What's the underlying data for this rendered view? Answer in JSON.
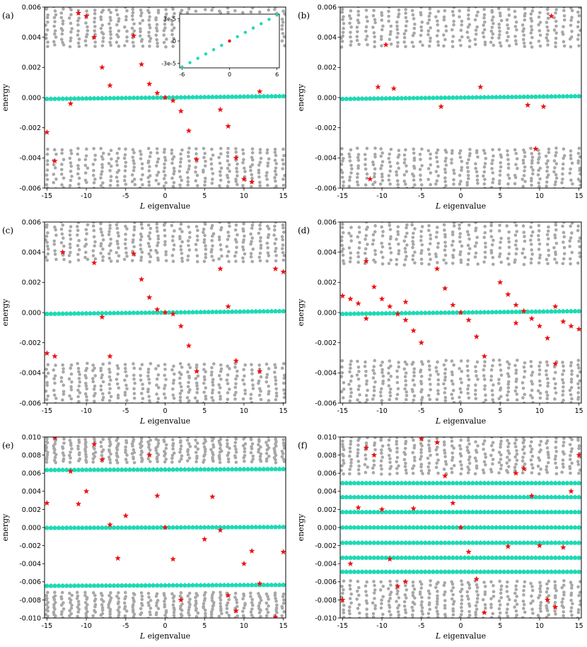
{
  "figure": {
    "legend_note": "red stars and cyan pentagons are highlighted states; grey dots are other states"
  },
  "style": {
    "grey": "#a8a8a8",
    "cyan": "#1ed9b4",
    "red": "#ee1111",
    "axis": "#000000"
  },
  "chart_data": [
    {
      "panel": "(a)",
      "type": "scatter",
      "xlabel": "L eigenvalue",
      "ylabel": "energy",
      "xlim": [
        -15.3,
        15.3
      ],
      "ylim": [
        -0.006,
        0.006
      ],
      "xticks": [
        -15,
        -10,
        -5,
        0,
        5,
        10,
        15
      ],
      "yticks": [
        -0.006,
        -0.004,
        -0.002,
        0.0,
        0.002,
        0.004,
        0.006
      ],
      "ytick_labels": [
        "-0.006",
        "-0.004",
        "-0.002",
        "0.000",
        "0.002",
        "0.004",
        "0.006"
      ],
      "grey_bands": [
        [
          0.0033,
          0.0062
        ],
        [
          -0.0062,
          -0.0033
        ]
      ],
      "cyan_rows": [
        {
          "y0": -9e-05,
          "y1": 9e-05
        }
      ],
      "red": [
        [
          -15,
          -0.0023
        ],
        [
          -14,
          -0.0042
        ],
        [
          -12,
          -0.0004
        ],
        [
          -11,
          0.0056
        ],
        [
          -10,
          0.0054
        ],
        [
          -9,
          0.004
        ],
        [
          -8,
          0.002
        ],
        [
          -7,
          0.0008
        ],
        [
          -4,
          0.0041
        ],
        [
          -3,
          0.0022
        ],
        [
          -2,
          0.0009
        ],
        [
          -1,
          0.0003
        ],
        [
          0,
          0.0
        ],
        [
          1,
          -0.0002
        ],
        [
          2,
          -0.0009
        ],
        [
          3,
          -0.0022
        ],
        [
          4,
          -0.0041
        ],
        [
          7,
          -0.0008
        ],
        [
          8,
          -0.0019
        ],
        [
          9,
          -0.004
        ],
        [
          10,
          -0.0054
        ],
        [
          11,
          -0.0056
        ],
        [
          12,
          0.0004
        ]
      ],
      "inset": {
        "xlim": [
          -6.3,
          6.3
        ],
        "ylim": [
          -3.6e-05,
          3.6e-05
        ],
        "xticks": [
          -6,
          0,
          6
        ],
        "yticks": [
          -3e-05,
          0.0,
          3e-05
        ],
        "ytick_labels": [
          "-3e-5",
          "0",
          "3e-5"
        ],
        "cyan_slope_per_L": 5.8e-06,
        "red": [
          [
            0,
            0.0
          ]
        ]
      }
    },
    {
      "panel": "(b)",
      "type": "scatter",
      "xlabel": "L eigenvalue",
      "ylabel": "energy",
      "xlim": [
        -15.3,
        15.3
      ],
      "ylim": [
        -0.006,
        0.006
      ],
      "xticks": [
        -15,
        -10,
        -5,
        0,
        5,
        10,
        15
      ],
      "yticks": [
        -0.006,
        -0.004,
        -0.002,
        0.0,
        0.002,
        0.004,
        0.006
      ],
      "ytick_labels": [
        "-0.006",
        "-0.004",
        "-0.002",
        "0.000",
        "0.002",
        "0.004",
        "0.006"
      ],
      "grey_bands": [
        [
          0.0033,
          0.0062
        ],
        [
          -0.0062,
          -0.0033
        ]
      ],
      "cyan_rows": [
        {
          "y0": -9e-05,
          "y1": 9e-05
        }
      ],
      "red": [
        [
          -11.5,
          -0.0054
        ],
        [
          -10.5,
          0.0007
        ],
        [
          -9.5,
          0.0035
        ],
        [
          -8.5,
          0.0006
        ],
        [
          -2.5,
          -0.0006
        ],
        [
          2.5,
          0.0007
        ],
        [
          8.5,
          -0.0005
        ],
        [
          9.5,
          -0.0034
        ],
        [
          10.5,
          -0.0006
        ],
        [
          11.5,
          0.0054
        ]
      ]
    },
    {
      "panel": "(c)",
      "type": "scatter",
      "xlabel": "L eigenvalue",
      "ylabel": "energy",
      "xlim": [
        -15.3,
        15.3
      ],
      "ylim": [
        -0.006,
        0.006
      ],
      "xticks": [
        -15,
        -10,
        -5,
        0,
        5,
        10,
        15
      ],
      "yticks": [
        -0.006,
        -0.004,
        -0.002,
        0.0,
        0.002,
        0.004,
        0.006
      ],
      "ytick_labels": [
        "-0.006",
        "-0.004",
        "-0.002",
        "0.000",
        "0.002",
        "0.004",
        "0.006"
      ],
      "grey_bands": [
        [
          0.0033,
          0.0062
        ],
        [
          -0.0062,
          -0.0033
        ]
      ],
      "cyan_rows": [
        {
          "y0": -9e-05,
          "y1": 9e-05
        }
      ],
      "red": [
        [
          -15,
          -0.0027
        ],
        [
          -14,
          -0.0029
        ],
        [
          -13,
          0.004
        ],
        [
          -9,
          0.0033
        ],
        [
          -8,
          -0.0003
        ],
        [
          -7,
          -0.0029
        ],
        [
          -4,
          0.0039
        ],
        [
          -3,
          0.0022
        ],
        [
          -2,
          0.001
        ],
        [
          -1,
          0.0002
        ],
        [
          0,
          0.0
        ],
        [
          1,
          -0.0001
        ],
        [
          2,
          -0.0009
        ],
        [
          3,
          -0.0022
        ],
        [
          4,
          -0.0039
        ],
        [
          7,
          0.0029
        ],
        [
          8,
          0.0004
        ],
        [
          9,
          -0.0032
        ],
        [
          12,
          -0.0039
        ],
        [
          14,
          0.0029
        ],
        [
          15,
          0.0027
        ]
      ]
    },
    {
      "panel": "(d)",
      "type": "scatter",
      "xlabel": "L eigenvalue",
      "ylabel": "energy",
      "xlim": [
        -15.3,
        15.3
      ],
      "ylim": [
        -0.006,
        0.006
      ],
      "xticks": [
        -15,
        -10,
        -5,
        0,
        5,
        10,
        15
      ],
      "yticks": [
        -0.006,
        -0.004,
        -0.002,
        0.0,
        0.002,
        0.004,
        0.006
      ],
      "ytick_labels": [
        "-0.006",
        "-0.004",
        "-0.002",
        "0.000",
        "0.002",
        "0.004",
        "0.006"
      ],
      "grey_bands": [
        [
          0.0031,
          0.0062
        ],
        [
          -0.0062,
          -0.0031
        ]
      ],
      "cyan_rows": [
        {
          "y0": -9e-05,
          "y1": 9e-05
        }
      ],
      "red": [
        [
          -15,
          0.0011
        ],
        [
          -14,
          0.0009
        ],
        [
          -13,
          0.0006
        ],
        [
          -12,
          0.0034
        ],
        [
          -12,
          -0.0004
        ],
        [
          -11,
          0.0017
        ],
        [
          -10,
          0.0009
        ],
        [
          -9,
          0.0004
        ],
        [
          -8,
          -0.0001
        ],
        [
          -7,
          0.0007
        ],
        [
          -7,
          -0.0005
        ],
        [
          -6,
          -0.0012
        ],
        [
          -5,
          -0.002
        ],
        [
          -3,
          0.0029
        ],
        [
          -2,
          0.0016
        ],
        [
          -1,
          0.0005
        ],
        [
          0,
          0.0
        ],
        [
          1,
          -0.0005
        ],
        [
          2,
          -0.0016
        ],
        [
          3,
          -0.0029
        ],
        [
          5,
          0.002
        ],
        [
          6,
          0.0012
        ],
        [
          7,
          0.0005
        ],
        [
          7,
          -0.0007
        ],
        [
          8,
          0.0001
        ],
        [
          9,
          -0.0004
        ],
        [
          10,
          -0.0009
        ],
        [
          11,
          -0.0017
        ],
        [
          12,
          0.0004
        ],
        [
          12,
          -0.0034
        ],
        [
          13,
          -0.0006
        ],
        [
          14,
          -0.0009
        ],
        [
          15,
          -0.0011
        ]
      ]
    },
    {
      "panel": "(e)",
      "type": "scatter",
      "xlabel": "L eigenvalue",
      "ylabel": "energy",
      "xlim": [
        -15.3,
        15.3
      ],
      "ylim": [
        -0.01,
        0.01
      ],
      "xticks": [
        -15,
        -10,
        -5,
        0,
        5,
        10,
        15
      ],
      "yticks": [
        -0.01,
        -0.008,
        -0.006,
        -0.004,
        -0.002,
        0.0,
        0.002,
        0.004,
        0.006,
        0.008,
        0.01
      ],
      "ytick_labels": [
        "-0.010",
        "-0.008",
        "-0.006",
        "-0.004",
        "-0.002",
        "0.000",
        "0.002",
        "0.004",
        "0.006",
        "0.008",
        "0.010"
      ],
      "grey_bands": [
        [
          0.0071,
          0.0102
        ],
        [
          -0.0102,
          -0.0071
        ]
      ],
      "cyan_rows": [
        {
          "y0": 0.00635,
          "y1": 0.00645
        },
        {
          "y0": -5e-05,
          "y1": 5e-05
        },
        {
          "y0": -0.00645,
          "y1": -0.00635
        }
      ],
      "red": [
        [
          -15,
          0.0027
        ],
        [
          -14,
          0.0099
        ],
        [
          -12,
          0.0062
        ],
        [
          -11,
          0.0026
        ],
        [
          -10,
          0.004
        ],
        [
          -9,
          0.0092
        ],
        [
          -8,
          0.0075
        ],
        [
          -7,
          0.0003
        ],
        [
          -6,
          -0.0034
        ],
        [
          -5,
          0.0013
        ],
        [
          -2,
          0.008
        ],
        [
          -1,
          0.0035
        ],
        [
          0,
          0.0
        ],
        [
          1,
          -0.0035
        ],
        [
          2,
          -0.008
        ],
        [
          5,
          -0.0013
        ],
        [
          6,
          0.0034
        ],
        [
          7,
          -0.0003
        ],
        [
          8,
          -0.0075
        ],
        [
          9,
          -0.0092
        ],
        [
          10,
          -0.004
        ],
        [
          11,
          -0.0026
        ],
        [
          12,
          -0.0062
        ],
        [
          14,
          -0.0099
        ],
        [
          15,
          -0.0027
        ]
      ]
    },
    {
      "panel": "(f)",
      "type": "scatter",
      "xlabel": "L eigenvalue",
      "ylabel": "energy",
      "xlim": [
        -15.3,
        15.3
      ],
      "ylim": [
        -0.01,
        0.01
      ],
      "xticks": [
        -15,
        -10,
        -5,
        0,
        5,
        10,
        15
      ],
      "yticks": [
        -0.01,
        -0.008,
        -0.006,
        -0.004,
        -0.002,
        0.0,
        0.002,
        0.004,
        0.006,
        0.008,
        0.01
      ],
      "ytick_labels": [
        "-0.010",
        "-0.008",
        "-0.006",
        "-0.004",
        "-0.002",
        "0.000",
        "0.002",
        "0.004",
        "0.006",
        "0.008",
        "0.010"
      ],
      "grey_bands": [
        [
          0.0058,
          0.0102
        ],
        [
          -0.0102,
          -0.0058
        ]
      ],
      "cyan_rows": [
        {
          "y0": 0.0049,
          "y1": 0.0049
        },
        {
          "y0": 0.00335,
          "y1": 0.00335
        },
        {
          "y0": 0.0017,
          "y1": 0.0017
        },
        {
          "y0": 0.0,
          "y1": 0.0
        },
        {
          "y0": -0.0017,
          "y1": -0.0017
        },
        {
          "y0": -0.00335,
          "y1": -0.00335
        },
        {
          "y0": -0.0049,
          "y1": -0.0049
        }
      ],
      "red": [
        [
          -15,
          -0.008
        ],
        [
          -14,
          -0.004
        ],
        [
          -13,
          0.0022
        ],
        [
          -12,
          0.0088
        ],
        [
          -11,
          0.008
        ],
        [
          -10,
          0.002
        ],
        [
          -9,
          -0.0035
        ],
        [
          -8,
          -0.0065
        ],
        [
          -7,
          -0.006
        ],
        [
          -6,
          0.0021
        ],
        [
          -5,
          0.0098
        ],
        [
          -3,
          0.0094
        ],
        [
          -2,
          0.0057
        ],
        [
          -1,
          0.0027
        ],
        [
          0,
          0.0
        ],
        [
          1,
          -0.0027
        ],
        [
          2,
          -0.0057
        ],
        [
          3,
          -0.0094
        ],
        [
          6,
          -0.0021
        ],
        [
          7,
          0.006
        ],
        [
          8,
          0.0065
        ],
        [
          9,
          0.0035
        ],
        [
          10,
          -0.002
        ],
        [
          12,
          -0.0088
        ],
        [
          11,
          -0.008
        ],
        [
          13,
          -0.0022
        ],
        [
          14,
          0.004
        ],
        [
          15,
          0.008
        ]
      ]
    }
  ]
}
